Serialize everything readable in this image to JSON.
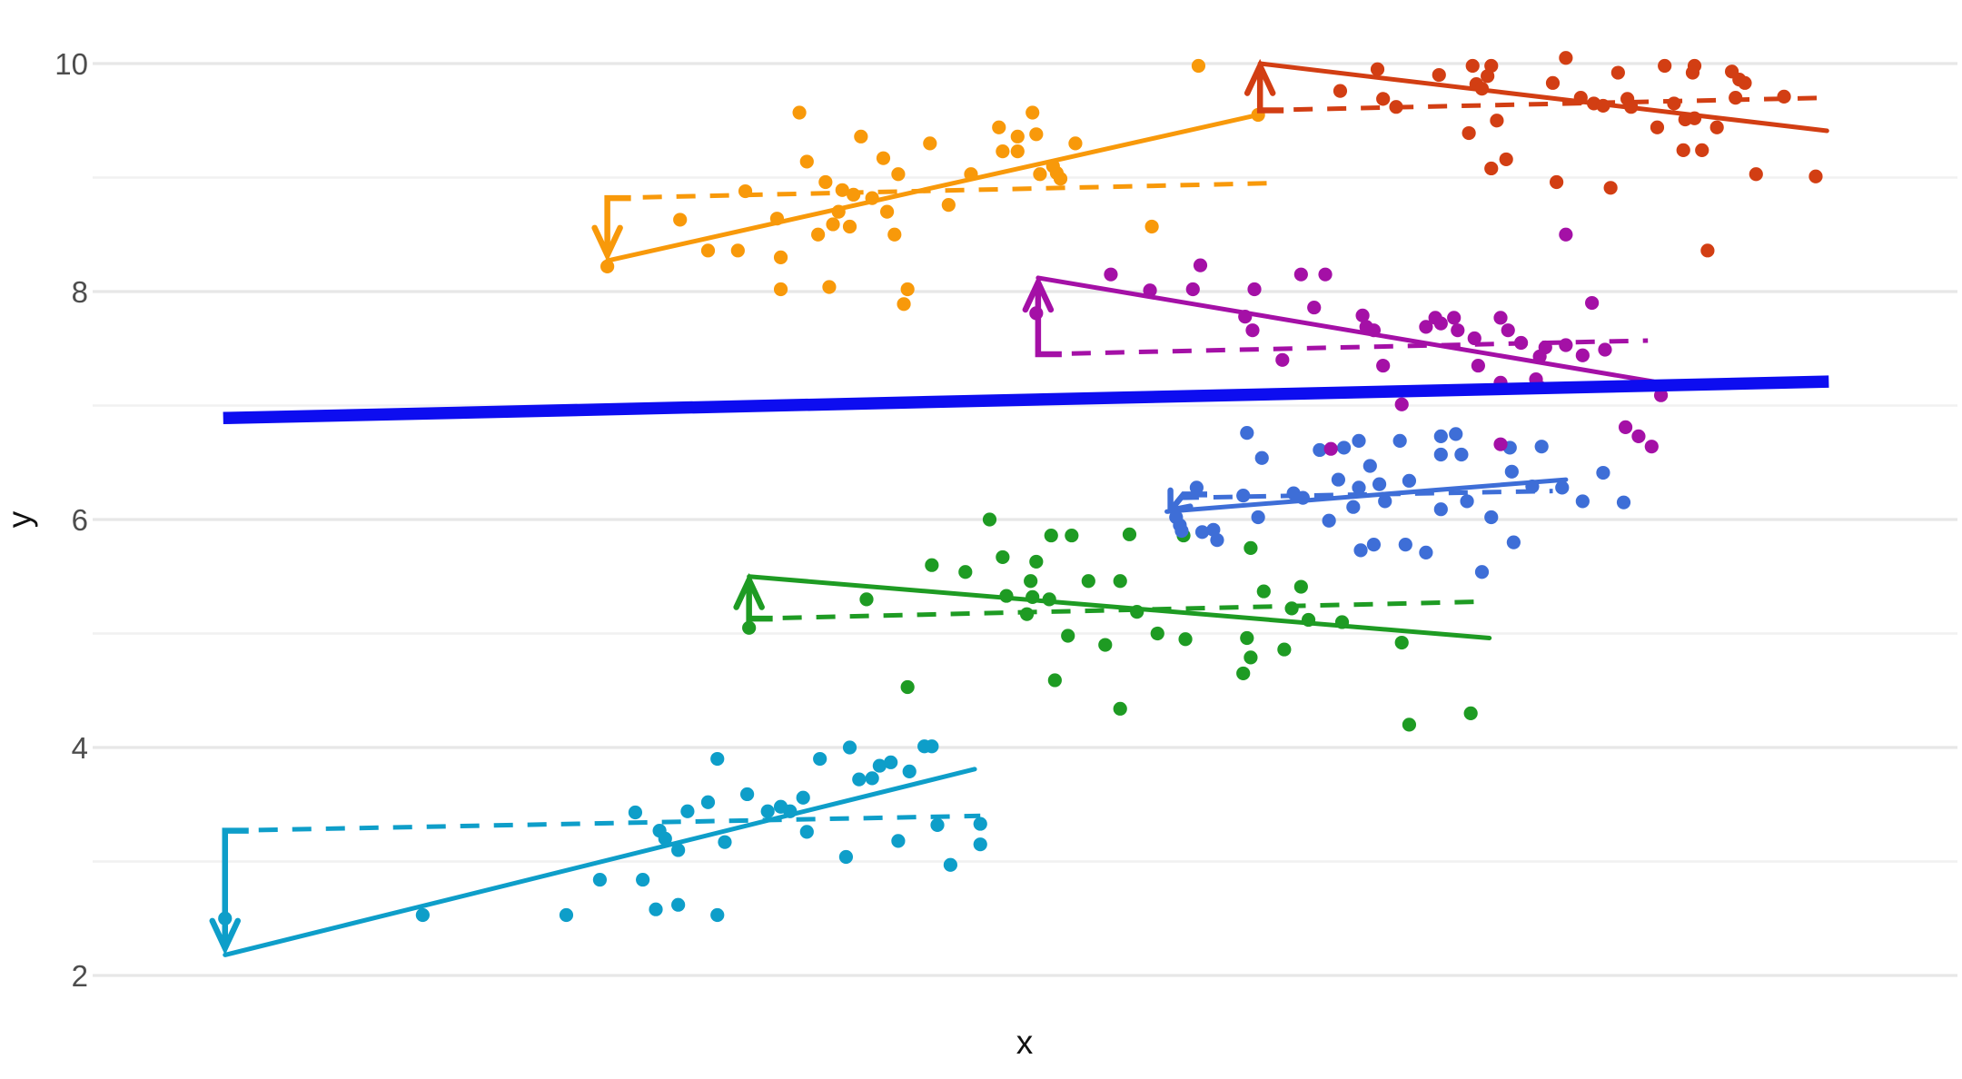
{
  "figure": {
    "background": "#ffffff",
    "grid_major_color": "#e7e7e7",
    "grid_minor_color": "#f1f1f1",
    "tick_label_color": "#4d4d4d",
    "axis_title_color": "#111111"
  },
  "axes": {
    "x": {
      "label": "x",
      "ticks": [],
      "note": "no tick labels shown"
    },
    "y": {
      "label": "y",
      "ticks": [
        10,
        8,
        6,
        4,
        2
      ],
      "minor_ticks": [
        9,
        7,
        5,
        3
      ]
    }
  },
  "chart_data": {
    "type": "scatter",
    "title": "",
    "xlabel": "x",
    "ylabel": "y",
    "xlim": [
      0,
      10
    ],
    "ylim": [
      1.7,
      10.45
    ],
    "grid": "horizontal-only",
    "legend_position": "none",
    "scales": {
      "x0": 102,
      "xs": 205.3,
      "y0": 70,
      "ys": 125.5,
      "ytop": 10
    },
    "overall_line": {
      "name": "overall-trend",
      "color": "#0d0df0",
      "width": 13.5,
      "from": [
        0.7,
        6.89
      ],
      "to": [
        9.31,
        7.21
      ]
    },
    "groups": [
      {
        "id": "teal",
        "color": "#0e9ec9",
        "solid_line": {
          "from": [
            0.71,
            2.18
          ],
          "to": [
            4.73,
            3.81
          ]
        },
        "dashed_line": {
          "from": [
            0.71,
            3.27
          ],
          "to": [
            4.76,
            3.4
          ]
        },
        "arrow": {
          "x": 0.71,
          "from": 3.27,
          "to": 2.24
        },
        "points": [
          [
            0.71,
            2.5
          ],
          [
            1.77,
            2.53
          ],
          [
            2.54,
            2.53
          ],
          [
            3.02,
            2.58
          ],
          [
            3.14,
            2.62
          ],
          [
            3.35,
            2.53
          ],
          [
            2.72,
            2.84
          ],
          [
            2.95,
            2.84
          ],
          [
            2.91,
            3.43
          ],
          [
            3.04,
            3.27
          ],
          [
            3.07,
            3.2
          ],
          [
            3.14,
            3.1
          ],
          [
            3.19,
            3.44
          ],
          [
            3.3,
            3.52
          ],
          [
            3.39,
            3.17
          ],
          [
            3.51,
            3.59
          ],
          [
            3.62,
            3.44
          ],
          [
            3.69,
            3.48
          ],
          [
            3.74,
            3.44
          ],
          [
            3.81,
            3.56
          ],
          [
            3.35,
            3.9
          ],
          [
            3.9,
            3.9
          ],
          [
            3.83,
            3.26
          ],
          [
            4.04,
            3.04
          ],
          [
            4.32,
            3.18
          ],
          [
            4.53,
            3.32
          ],
          [
            4.76,
            3.33
          ],
          [
            4.76,
            3.15
          ],
          [
            4.6,
            2.97
          ],
          [
            4.11,
            3.72
          ],
          [
            4.18,
            3.73
          ],
          [
            4.22,
            3.84
          ],
          [
            4.28,
            3.87
          ],
          [
            4.38,
            3.79
          ],
          [
            4.46,
            4.01
          ],
          [
            4.5,
            4.01
          ],
          [
            4.06,
            4.0
          ]
        ]
      },
      {
        "id": "green",
        "color": "#1e9b23",
        "solid_line": {
          "from": [
            3.52,
            5.5
          ],
          "to": [
            7.49,
            4.96
          ]
        },
        "dashed_line": {
          "from": [
            3.52,
            5.13
          ],
          "to": [
            7.46,
            5.28
          ]
        },
        "arrow": {
          "x": 3.52,
          "from": 5.13,
          "to": 5.47
        },
        "points": [
          [
            3.52,
            5.05
          ],
          [
            4.15,
            5.3
          ],
          [
            4.5,
            5.6
          ],
          [
            4.81,
            6.0
          ],
          [
            4.37,
            4.53
          ],
          [
            4.68,
            5.54
          ],
          [
            4.88,
            5.67
          ],
          [
            5.06,
            5.63
          ],
          [
            5.14,
            5.86
          ],
          [
            5.25,
            5.86
          ],
          [
            5.56,
            5.87
          ],
          [
            5.03,
            5.46
          ],
          [
            5.34,
            5.46
          ],
          [
            5.51,
            5.46
          ],
          [
            4.9,
            5.33
          ],
          [
            5.04,
            5.32
          ],
          [
            5.13,
            5.3
          ],
          [
            5.01,
            5.17
          ],
          [
            5.6,
            5.19
          ],
          [
            5.23,
            4.98
          ],
          [
            5.43,
            4.9
          ],
          [
            5.71,
            5.0
          ],
          [
            5.86,
            4.95
          ],
          [
            6.19,
            4.96
          ],
          [
            5.16,
            4.59
          ],
          [
            5.51,
            4.34
          ],
          [
            6.43,
            5.22
          ],
          [
            6.52,
            5.12
          ],
          [
            6.7,
            5.1
          ],
          [
            6.28,
            5.37
          ],
          [
            6.48,
            5.41
          ],
          [
            6.21,
            4.79
          ],
          [
            6.17,
            4.65
          ],
          [
            6.39,
            4.86
          ],
          [
            5.85,
            5.86
          ],
          [
            6.21,
            5.75
          ],
          [
            7.02,
            4.92
          ],
          [
            7.06,
            4.2
          ],
          [
            7.39,
            4.3
          ]
        ]
      },
      {
        "id": "blue",
        "color": "#3e6ed7",
        "solid_line": {
          "from": [
            5.76,
            6.07
          ],
          "to": [
            7.9,
            6.35
          ]
        },
        "dashed_line": {
          "from": [
            5.83,
            6.19
          ],
          "to": [
            7.83,
            6.25
          ]
        },
        "arrow": {
          "x": 5.85,
          "x2": 5.78,
          "from": 6.22,
          "to": 6.08
        },
        "points": [
          [
            5.81,
            6.02
          ],
          [
            5.83,
            5.95
          ],
          [
            5.84,
            5.9
          ],
          [
            5.92,
            6.28
          ],
          [
            5.95,
            5.89
          ],
          [
            6.03,
            5.82
          ],
          [
            6.19,
            6.76
          ],
          [
            6.27,
            6.54
          ],
          [
            6.17,
            6.21
          ],
          [
            6.25,
            6.02
          ],
          [
            6.44,
            6.23
          ],
          [
            6.49,
            6.19
          ],
          [
            6.58,
            6.61
          ],
          [
            6.71,
            6.63
          ],
          [
            6.68,
            6.35
          ],
          [
            6.79,
            6.28
          ],
          [
            6.76,
            6.11
          ],
          [
            6.63,
            5.99
          ],
          [
            6.79,
            6.69
          ],
          [
            6.85,
            6.47
          ],
          [
            6.9,
            6.31
          ],
          [
            6.8,
            5.73
          ],
          [
            6.87,
            5.78
          ],
          [
            7.01,
            6.69
          ],
          [
            7.06,
            6.34
          ],
          [
            6.93,
            6.16
          ],
          [
            7.04,
            5.78
          ],
          [
            7.15,
            5.71
          ],
          [
            7.23,
            6.73
          ],
          [
            7.31,
            6.75
          ],
          [
            7.23,
            6.57
          ],
          [
            7.34,
            6.57
          ],
          [
            7.37,
            6.16
          ],
          [
            7.23,
            6.09
          ],
          [
            7.5,
            6.02
          ],
          [
            7.61,
            6.42
          ],
          [
            7.72,
            6.29
          ],
          [
            7.62,
            5.8
          ],
          [
            7.77,
            6.64
          ],
          [
            7.6,
            6.63
          ],
          [
            7.88,
            6.28
          ],
          [
            7.99,
            6.16
          ],
          [
            8.1,
            6.41
          ],
          [
            8.21,
            6.15
          ],
          [
            7.45,
            5.54
          ],
          [
            6.01,
            5.91
          ]
        ]
      },
      {
        "id": "purple",
        "color": "#a410a6",
        "solid_line": {
          "from": [
            5.07,
            8.12
          ],
          "to": [
            8.37,
            7.21
          ]
        },
        "dashed_line": {
          "from": [
            5.07,
            7.45
          ],
          "to": [
            8.34,
            7.57
          ]
        },
        "arrow": {
          "x": 5.07,
          "from": 7.45,
          "to": 8.08
        },
        "points": [
          [
            5.06,
            7.81
          ],
          [
            5.46,
            8.15
          ],
          [
            5.67,
            8.01
          ],
          [
            5.94,
            8.23
          ],
          [
            5.9,
            8.02
          ],
          [
            6.23,
            8.02
          ],
          [
            6.18,
            7.78
          ],
          [
            6.22,
            7.66
          ],
          [
            6.48,
            8.15
          ],
          [
            6.61,
            8.15
          ],
          [
            6.55,
            7.86
          ],
          [
            6.81,
            7.79
          ],
          [
            6.83,
            7.69
          ],
          [
            6.87,
            7.66
          ],
          [
            6.38,
            7.4
          ],
          [
            6.64,
            6.62
          ],
          [
            6.92,
            7.35
          ],
          [
            7.02,
            7.01
          ],
          [
            7.15,
            7.69
          ],
          [
            7.2,
            7.77
          ],
          [
            7.23,
            7.72
          ],
          [
            7.3,
            7.77
          ],
          [
            7.32,
            7.66
          ],
          [
            7.41,
            7.59
          ],
          [
            7.43,
            7.35
          ],
          [
            7.55,
            7.77
          ],
          [
            7.59,
            7.66
          ],
          [
            7.66,
            7.55
          ],
          [
            7.55,
            7.2
          ],
          [
            7.79,
            7.51
          ],
          [
            7.76,
            7.43
          ],
          [
            7.74,
            7.23
          ],
          [
            7.76,
            7.16
          ],
          [
            7.9,
            7.53
          ],
          [
            7.99,
            7.44
          ],
          [
            8.04,
            7.9
          ],
          [
            8.11,
            7.49
          ],
          [
            8.22,
            6.81
          ],
          [
            8.29,
            6.73
          ],
          [
            8.36,
            6.64
          ],
          [
            8.41,
            7.09
          ],
          [
            7.9,
            8.5
          ],
          [
            7.55,
            6.66
          ]
        ]
      },
      {
        "id": "orange",
        "color": "#f8990a",
        "solid_line": {
          "from": [
            2.76,
            8.27
          ],
          "to": [
            6.25,
            9.55
          ]
        },
        "dashed_line": {
          "from": [
            2.77,
            8.82
          ],
          "to": [
            6.3,
            8.95
          ]
        },
        "arrow": {
          "x": 2.76,
          "from": 8.82,
          "to": 8.32
        },
        "points": [
          [
            2.76,
            8.22
          ],
          [
            3.15,
            8.63
          ],
          [
            3.3,
            8.36
          ],
          [
            3.46,
            8.36
          ],
          [
            3.5,
            8.88
          ],
          [
            3.67,
            8.64
          ],
          [
            3.69,
            8.3
          ],
          [
            3.69,
            8.02
          ],
          [
            3.79,
            9.57
          ],
          [
            3.83,
            9.14
          ],
          [
            3.89,
            8.5
          ],
          [
            3.93,
            8.96
          ],
          [
            3.97,
            8.59
          ],
          [
            4.0,
            8.7
          ],
          [
            4.02,
            8.89
          ],
          [
            3.95,
            8.04
          ],
          [
            4.06,
            8.57
          ],
          [
            4.08,
            8.85
          ],
          [
            4.12,
            9.36
          ],
          [
            4.18,
            8.82
          ],
          [
            4.24,
            9.17
          ],
          [
            4.26,
            8.7
          ],
          [
            4.32,
            9.03
          ],
          [
            4.3,
            8.5
          ],
          [
            4.37,
            8.02
          ],
          [
            4.35,
            7.89
          ],
          [
            4.49,
            9.3
          ],
          [
            4.59,
            8.76
          ],
          [
            4.71,
            9.03
          ],
          [
            4.86,
            9.44
          ],
          [
            4.88,
            9.23
          ],
          [
            4.96,
            9.36
          ],
          [
            4.96,
            9.23
          ],
          [
            5.04,
            9.57
          ],
          [
            5.06,
            9.38
          ],
          [
            5.27,
            9.3
          ],
          [
            5.08,
            9.03
          ],
          [
            5.15,
            9.1
          ],
          [
            5.17,
            9.04
          ],
          [
            5.19,
            8.99
          ],
          [
            5.68,
            8.57
          ],
          [
            5.93,
            9.98
          ],
          [
            6.25,
            9.55
          ]
        ]
      },
      {
        "id": "red",
        "color": "#d23e13",
        "solid_line": {
          "from": [
            6.26,
            10.0
          ],
          "to": [
            9.3,
            9.41
          ]
        },
        "dashed_line": {
          "from": [
            6.26,
            9.59
          ],
          "to": [
            9.3,
            9.7
          ]
        },
        "arrow": {
          "x": 6.26,
          "from": 9.59,
          "to": 9.98
        },
        "points": [
          [
            6.89,
            9.95
          ],
          [
            6.69,
            9.76
          ],
          [
            6.92,
            9.69
          ],
          [
            6.99,
            9.62
          ],
          [
            7.22,
            9.9
          ],
          [
            7.4,
            9.98
          ],
          [
            7.42,
            9.82
          ],
          [
            7.5,
            9.98
          ],
          [
            7.48,
            9.89
          ],
          [
            7.45,
            9.78
          ],
          [
            7.38,
            9.39
          ],
          [
            7.53,
            9.5
          ],
          [
            7.58,
            9.16
          ],
          [
            7.5,
            9.08
          ],
          [
            7.9,
            10.05
          ],
          [
            7.83,
            9.83
          ],
          [
            7.85,
            8.96
          ],
          [
            7.98,
            9.7
          ],
          [
            8.05,
            9.65
          ],
          [
            8.1,
            9.63
          ],
          [
            8.18,
            9.92
          ],
          [
            8.14,
            8.91
          ],
          [
            8.23,
            9.69
          ],
          [
            8.25,
            9.62
          ],
          [
            8.43,
            9.98
          ],
          [
            8.48,
            9.65
          ],
          [
            8.39,
            9.44
          ],
          [
            8.54,
            9.51
          ],
          [
            8.53,
            9.24
          ],
          [
            8.59,
            9.98
          ],
          [
            8.58,
            9.92
          ],
          [
            8.59,
            9.52
          ],
          [
            8.63,
            9.24
          ],
          [
            8.71,
            9.44
          ],
          [
            8.79,
            9.93
          ],
          [
            8.83,
            9.86
          ],
          [
            8.81,
            9.7
          ],
          [
            8.86,
            9.83
          ],
          [
            8.92,
            9.03
          ],
          [
            9.07,
            9.71
          ],
          [
            9.24,
            9.01
          ],
          [
            8.66,
            8.36
          ]
        ]
      }
    ]
  }
}
